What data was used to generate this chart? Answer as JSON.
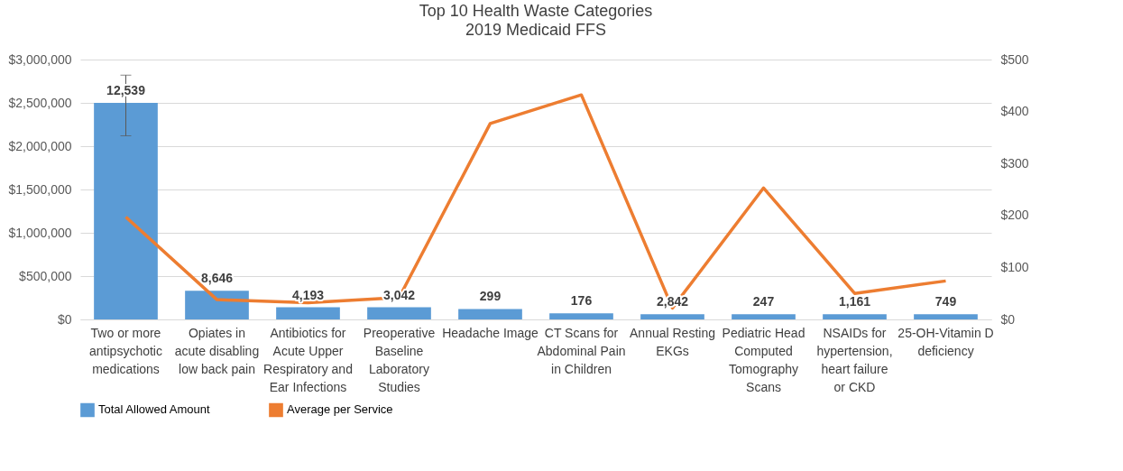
{
  "chart_data": {
    "type": "bar",
    "title": "Top 10 Health Waste Categories",
    "subtitle": "2019 Medicaid FFS",
    "categories": [
      "Two or more antipsychotic medications",
      "Opiates in acute disabling low back pain",
      "Antibiotics for Acute Upper Respiratory and Ear Infections",
      "Preoperative Baseline Laboratory Studies",
      "Headache Image",
      "CT Scans for Abdominal Pain in Children",
      "Annual Resting EKGs",
      "Pediatric Head Computed Tomography Scans",
      "NSAIDs for hypertension, heart failure or CKD",
      "25-OH-Vitamin D deficiency"
    ],
    "series": [
      {
        "name": "Total Allowed Amount",
        "color": "#5b9bd5",
        "values": [
          2500000,
          330000,
          140000,
          140000,
          120000,
          70000,
          60000,
          60000,
          60000,
          60000
        ],
        "errors": [
          [
            2120000,
            2820000
          ],
          null,
          null,
          null,
          null,
          null,
          null,
          null,
          null,
          null
        ]
      },
      {
        "name": "Average per Service",
        "type": "line",
        "axis": "y2",
        "color": "#ed7d31",
        "values": [
          197,
          38,
          32,
          42,
          377,
          432,
          22,
          253,
          50,
          74
        ]
      }
    ],
    "annotations": [
      {
        "text": "12,539",
        "x": "Two or more antipsychotic medications",
        "y": 2500000
      },
      {
        "text": "8,646",
        "x": "Opiates in acute disabling low back pain",
        "y": 330000
      },
      {
        "text": "4,193",
        "x": "Antibiotics for Acute Upper Respiratory and Ear Infections",
        "y": 140000
      },
      {
        "text": "3,042",
        "x": "Preoperative Baseline Laboratory Studies",
        "y": 140000
      },
      {
        "text": "299",
        "x": "Headache Image",
        "y": 120000
      },
      {
        "text": "176",
        "x": "CT Scans for Abdominal Pain in Children",
        "y": 70000
      },
      {
        "text": "2,842",
        "x": "Annual Resting EKGs",
        "y": 60000
      },
      {
        "text": "247",
        "x": "Pediatric Head Computed Tomography Scans",
        "y": 60000
      },
      {
        "text": "1,161",
        "x": "NSAIDs for hypertension, heart failure or CKD",
        "y": 60000
      },
      {
        "text": "749",
        "x": "25-OH-Vitamin D deficiency",
        "y": 60000
      }
    ],
    "ylim": [
      0,
      3000000
    ],
    "yticks": [
      {
        "value": 0,
        "label": "$0"
      },
      {
        "value": 500000,
        "label": "$500,000"
      },
      {
        "value": 1000000,
        "label": "$1,000,000"
      },
      {
        "value": 1500000,
        "label": "$1,500,000"
      },
      {
        "value": 2000000,
        "label": "$2,000,000"
      },
      {
        "value": 2500000,
        "label": "$2,500,000"
      },
      {
        "value": 3000000,
        "label": "$3,000,000"
      }
    ],
    "y2lim": [
      0,
      500
    ],
    "y2ticks": [
      {
        "value": 0,
        "label": "$0"
      },
      {
        "value": 100,
        "label": "$100"
      },
      {
        "value": 200,
        "label": "$200"
      },
      {
        "value": 300,
        "label": "$300"
      },
      {
        "value": 400,
        "label": "$400"
      },
      {
        "value": 500,
        "label": "$500"
      }
    ],
    "grid": "y",
    "legend": "bottom"
  }
}
